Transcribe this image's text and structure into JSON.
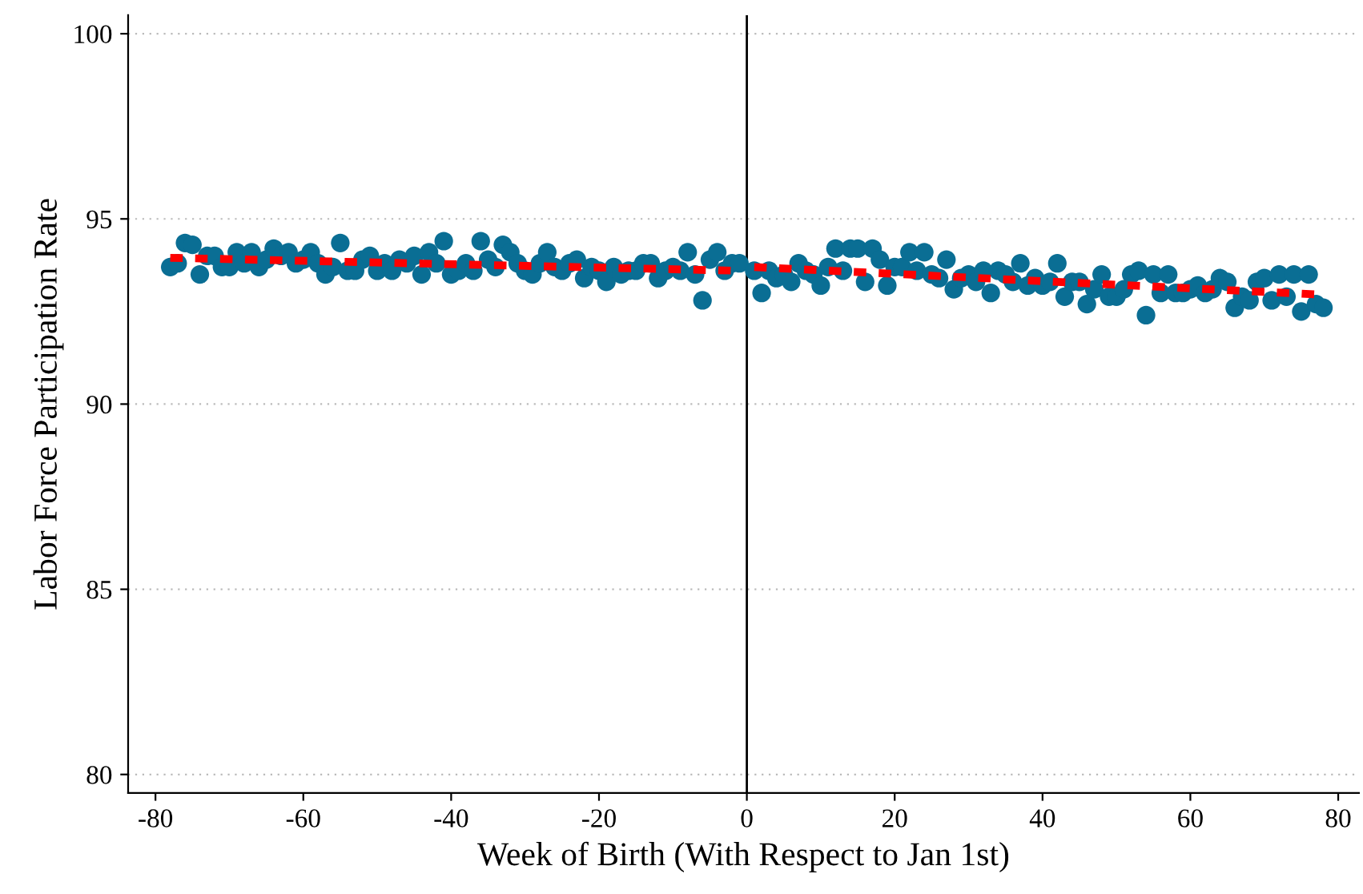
{
  "chart_data": {
    "type": "scatter",
    "xlabel": "Week of Birth (With Respect to Jan 1st)",
    "ylabel": "Labor Force Participation Rate",
    "xlim": [
      -83.7,
      82.8
    ],
    "ylim": [
      79.5,
      100.5
    ],
    "xticks": [
      -80,
      -60,
      -40,
      -20,
      0,
      20,
      40,
      60,
      80
    ],
    "yticks": [
      80,
      85,
      90,
      95,
      100
    ],
    "grid": "y",
    "legend": false,
    "marker": "circle",
    "ref_lines": [
      {
        "axis": "x",
        "value": 0,
        "color": "#000000",
        "line_style": "solid"
      }
    ],
    "series": [
      {
        "color": "#0a6e94",
        "x": [
          -78,
          -77,
          -76,
          -75,
          -74,
          -73,
          -72,
          -71,
          -70,
          -69,
          -68,
          -67,
          -66,
          -65,
          -64,
          -63,
          -62,
          -61,
          -60,
          -59,
          -58,
          -57,
          -56,
          -55,
          -54,
          -53,
          -52,
          -51,
          -50,
          -49,
          -48,
          -47,
          -46,
          -45,
          -44,
          -43,
          -42,
          -41,
          -40,
          -39,
          -38,
          -37,
          -36,
          -35,
          -34,
          -33,
          -32,
          -31,
          -30,
          -29,
          -28,
          -27,
          -26,
          -25,
          -24,
          -23,
          -22,
          -21,
          -20,
          -19,
          -18,
          -17,
          -16,
          -15,
          -14,
          -13,
          -12,
          -11,
          -10,
          -9,
          -8,
          -7,
          -6,
          -5,
          -4,
          -3,
          -2,
          -1
        ],
        "values": [
          93.7,
          93.8,
          94.35,
          94.3,
          93.5,
          94.0,
          94.0,
          93.7,
          93.7,
          94.1,
          93.8,
          94.1,
          93.7,
          93.9,
          94.2,
          94.0,
          94.1,
          93.8,
          93.9,
          94.1,
          93.8,
          93.5,
          93.7,
          94.35,
          93.6,
          93.6,
          93.9,
          94.0,
          93.6,
          93.8,
          93.6,
          93.9,
          93.8,
          94.0,
          93.5,
          94.1,
          93.8,
          94.4,
          93.5,
          93.6,
          93.8,
          93.6,
          94.4,
          93.9,
          93.7,
          94.3,
          94.1,
          93.8,
          93.6,
          93.5,
          93.8,
          94.1,
          93.7,
          93.6,
          93.8,
          93.9,
          93.4,
          93.7,
          93.6,
          93.3,
          93.7,
          93.5,
          93.6,
          93.6,
          93.8,
          93.8,
          93.4,
          93.6,
          93.7,
          93.6,
          94.1,
          93.5,
          92.8,
          93.9,
          94.1,
          93.6,
          93.8,
          93.8
        ]
      },
      {
        "color": "#0a6e94",
        "x": [
          1,
          2,
          3,
          4,
          5,
          6,
          7,
          8,
          9,
          10,
          11,
          12,
          13,
          14,
          15,
          16,
          17,
          18,
          19,
          20,
          21,
          22,
          23,
          24,
          25,
          26,
          27,
          28,
          29,
          30,
          31,
          32,
          33,
          34,
          35,
          36,
          37,
          38,
          39,
          40,
          41,
          42,
          43,
          44,
          45,
          46,
          47,
          48,
          49,
          50,
          51,
          52,
          53,
          54,
          55,
          56,
          57,
          58,
          59,
          60,
          61,
          62,
          63,
          64,
          65,
          66,
          67,
          68,
          69,
          70,
          71,
          72,
          73,
          74,
          75,
          76,
          77,
          78
        ],
        "values": [
          93.6,
          93.0,
          93.6,
          93.4,
          93.5,
          93.3,
          93.8,
          93.6,
          93.5,
          93.2,
          93.7,
          94.2,
          93.6,
          94.2,
          94.2,
          93.3,
          94.2,
          93.9,
          93.2,
          93.7,
          93.7,
          94.1,
          93.6,
          94.1,
          93.5,
          93.4,
          93.9,
          93.1,
          93.4,
          93.5,
          93.3,
          93.6,
          93.0,
          93.6,
          93.5,
          93.3,
          93.8,
          93.2,
          93.4,
          93.2,
          93.3,
          93.8,
          92.9,
          93.3,
          93.3,
          92.7,
          93.1,
          93.5,
          92.9,
          92.9,
          93.1,
          93.5,
          93.6,
          92.4,
          93.5,
          93.0,
          93.5,
          93.0,
          93.0,
          93.1,
          93.2,
          93.0,
          93.1,
          93.4,
          93.3,
          92.6,
          92.9,
          92.8,
          93.3,
          93.4,
          92.8,
          93.5,
          92.9,
          93.5,
          92.5,
          93.5,
          92.7,
          92.6
        ]
      },
      {
        "type": "line",
        "color": "#ff0000",
        "line_style": "dashed",
        "marker": "none",
        "x": [
          -78,
          -1
        ],
        "values": [
          93.95,
          93.6
        ]
      },
      {
        "type": "line",
        "color": "#ff0000",
        "line_style": "dashed",
        "marker": "none",
        "x": [
          1,
          78
        ],
        "values": [
          93.7,
          92.95
        ]
      }
    ]
  }
}
